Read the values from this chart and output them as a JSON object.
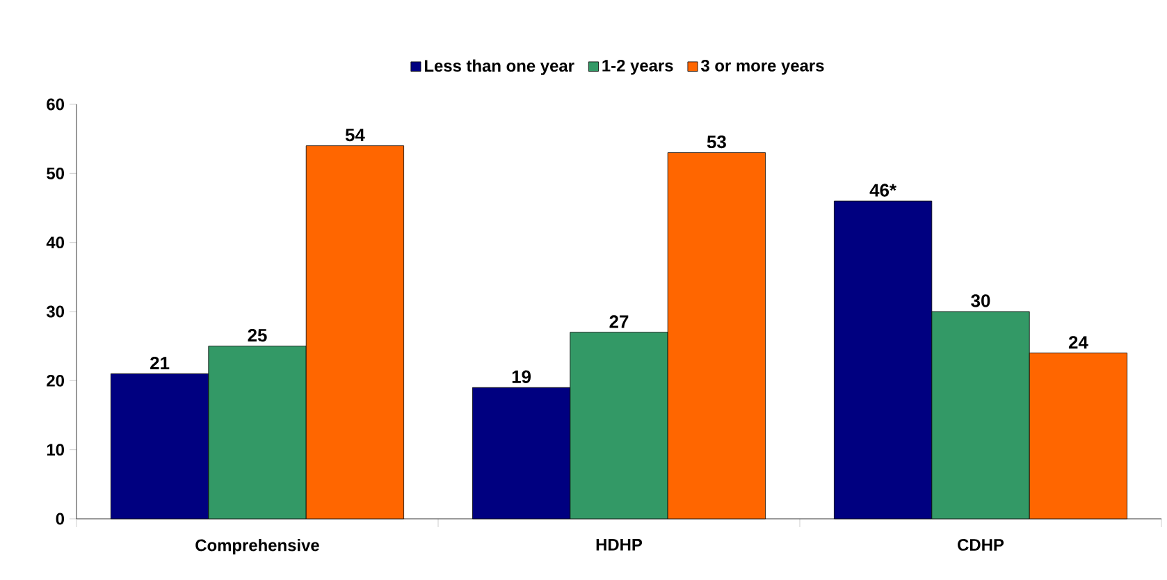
{
  "chart_data": {
    "type": "bar",
    "categories": [
      "Comprehensive",
      "HDHP",
      "CDHP"
    ],
    "series": [
      {
        "name": "Less than one year",
        "color": "#000080",
        "values": [
          21,
          19,
          46
        ],
        "value_labels": [
          "21",
          "19",
          "46*"
        ]
      },
      {
        "name": "1-2 years",
        "color": "#339966",
        "values": [
          25,
          27,
          30
        ],
        "value_labels": [
          "25",
          "27",
          "30"
        ]
      },
      {
        "name": "3 or more years",
        "color": "#ff6600",
        "values": [
          54,
          53,
          24
        ],
        "value_labels": [
          "54",
          "53",
          "24"
        ]
      }
    ],
    "ylim": [
      0,
      60
    ],
    "yticks": [
      0,
      10,
      20,
      30,
      40,
      50,
      60
    ],
    "legend": "top",
    "grid": false
  }
}
